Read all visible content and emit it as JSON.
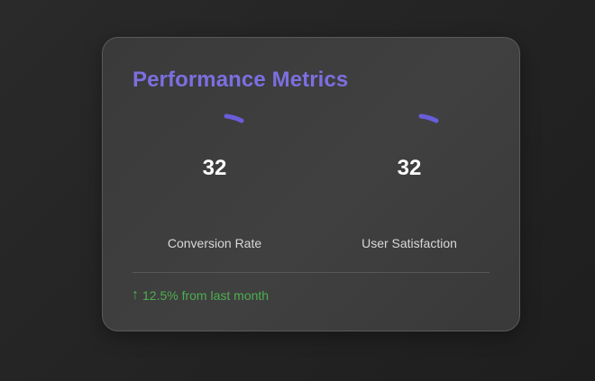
{
  "card": {
    "title": "Performance Metrics"
  },
  "metrics": [
    {
      "label": "Conversion Rate",
      "value": "32",
      "percent": 32
    },
    {
      "label": "User Satisfaction",
      "value": "32",
      "percent": 32
    }
  ],
  "footer": {
    "trend_icon": "up-arrow-icon",
    "arrow": "↑",
    "text": "12.5% from last month"
  },
  "colors": {
    "accent": "#7c6fe0",
    "gauge_arc": "#6a5ddb",
    "positive": "#4caf50"
  }
}
